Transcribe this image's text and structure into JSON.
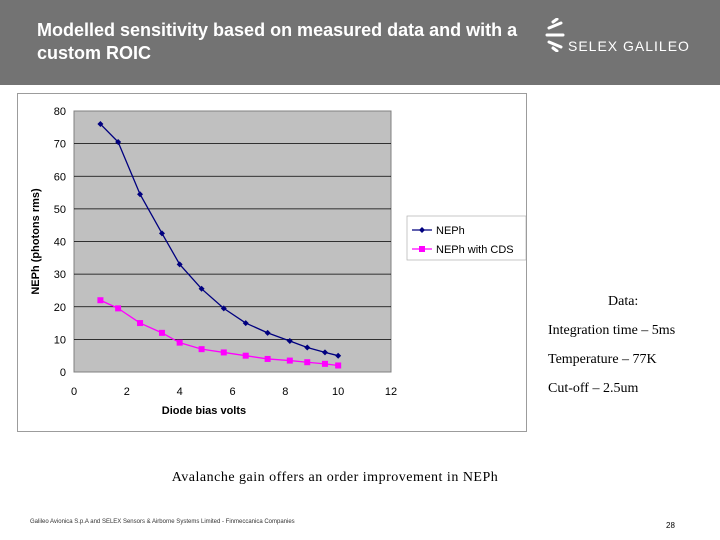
{
  "slide": {
    "title": "Modelled sensitivity based on measured data and with a custom ROIC",
    "logo_text": "SELEX GALILEO",
    "caption": "Avalanche gain offers an order improvement in NEPh",
    "footer": "Galileo Avionica S.p.A and SELEX Sensors & Airborne Systems Limited - Finmeccanica Companies",
    "page_number": "28"
  },
  "notes": {
    "heading": "Data:",
    "lines": [
      "Integration time – 5ms",
      "Temperature – 77K",
      "Cut-off – 2.5um"
    ]
  },
  "colors": {
    "header_bg": "#737373",
    "plot_bg": "#c0c0c0",
    "series1": "#00007f",
    "series2": "#ff00ff"
  },
  "chart_data": {
    "type": "line",
    "title": "",
    "xlabel": "Diode bias volts",
    "ylabel": "NEPh (photons rms)",
    "xlim": [
      0,
      12
    ],
    "ylim": [
      0,
      80
    ],
    "xticks": [
      "0",
      "2",
      "4",
      "6",
      "8",
      "10",
      "12"
    ],
    "yticks": [
      "0",
      "10",
      "20",
      "30",
      "40",
      "50",
      "60",
      "70",
      "80"
    ],
    "grid": "horizontal",
    "legend": "right",
    "x": [
      1,
      1.67,
      2.5,
      3.33,
      4,
      4.83,
      5.67,
      6.5,
      7.33,
      8.17,
      8.83,
      9.5,
      10
    ],
    "series": [
      {
        "name": "NEPh",
        "marker": "diamond",
        "values": [
          76,
          70.5,
          54.5,
          42.5,
          33,
          25.5,
          19.5,
          15,
          12,
          9.5,
          7.5,
          6,
          5
        ]
      },
      {
        "name": "NEPh with CDS",
        "marker": "square",
        "values": [
          22,
          19.5,
          15,
          12,
          9,
          7,
          6,
          5,
          4,
          3.5,
          3,
          2.5,
          2
        ]
      }
    ]
  }
}
